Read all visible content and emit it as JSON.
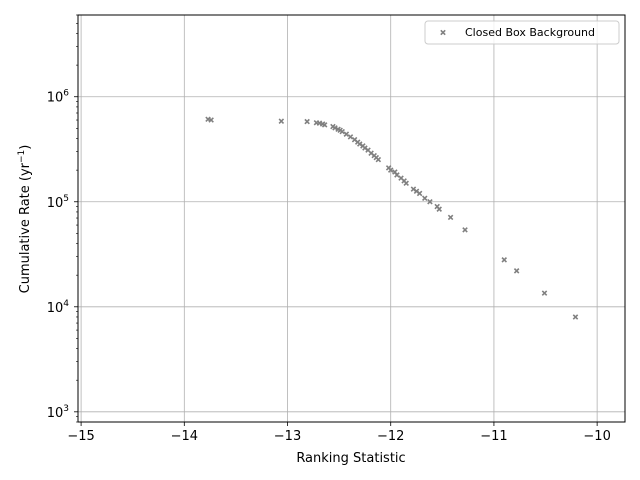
{
  "chart_data": {
    "type": "scatter",
    "title": "",
    "xlabel": "Ranking Statistic",
    "ylabel_prefix": "Cumulative Rate (yr",
    "ylabel_exp": "−1",
    "ylabel_suffix": ")",
    "yscale": "log",
    "xlim": [
      -15.03,
      -9.73
    ],
    "ylim": [
      800,
      6000000
    ],
    "grid": true,
    "legend_position": "top-right",
    "x_ticks": [
      {
        "value": -15,
        "label": "−15"
      },
      {
        "value": -14,
        "label": "−14"
      },
      {
        "value": -13,
        "label": "−13"
      },
      {
        "value": -12,
        "label": "−12"
      },
      {
        "value": -11,
        "label": "−11"
      },
      {
        "value": -10,
        "label": "−10"
      }
    ],
    "y_ticks": [
      {
        "value": 1000,
        "base": "10",
        "exp": "3"
      },
      {
        "value": 10000,
        "base": "10",
        "exp": "4"
      },
      {
        "value": 100000,
        "base": "10",
        "exp": "5"
      },
      {
        "value": 1000000,
        "base": "10",
        "exp": "6"
      }
    ],
    "series": [
      {
        "name": "Closed Box Background",
        "color": "#808080",
        "marker": "x",
        "points": [
          [
            -13.77,
            610000
          ],
          [
            -13.74,
            600000
          ],
          [
            -13.06,
            585000
          ],
          [
            -12.81,
            580000
          ],
          [
            -12.72,
            565000
          ],
          [
            -12.69,
            560000
          ],
          [
            -12.66,
            550000
          ],
          [
            -12.64,
            540000
          ],
          [
            -12.56,
            520000
          ],
          [
            -12.54,
            505000
          ],
          [
            -12.51,
            490000
          ],
          [
            -12.49,
            480000
          ],
          [
            -12.47,
            465000
          ],
          [
            -12.43,
            440000
          ],
          [
            -12.39,
            415000
          ],
          [
            -12.35,
            390000
          ],
          [
            -12.32,
            370000
          ],
          [
            -12.3,
            355000
          ],
          [
            -12.27,
            340000
          ],
          [
            -12.25,
            325000
          ],
          [
            -12.22,
            310000
          ],
          [
            -12.19,
            290000
          ],
          [
            -12.16,
            275000
          ],
          [
            -12.14,
            263000
          ],
          [
            -12.12,
            252000
          ],
          [
            -12.02,
            210000
          ],
          [
            -12.0,
            200000
          ],
          [
            -11.96,
            192000
          ],
          [
            -11.94,
            180000
          ],
          [
            -11.9,
            168000
          ],
          [
            -11.87,
            158000
          ],
          [
            -11.85,
            150000
          ],
          [
            -11.78,
            132000
          ],
          [
            -11.75,
            126000
          ],
          [
            -11.72,
            120000
          ],
          [
            -11.67,
            108000
          ],
          [
            -11.62,
            100000
          ],
          [
            -11.55,
            90000
          ],
          [
            -11.53,
            85000
          ],
          [
            -11.42,
            71000
          ],
          [
            -11.28,
            54000
          ],
          [
            -10.9,
            28000
          ],
          [
            -10.78,
            22000
          ],
          [
            -10.51,
            13500
          ],
          [
            -10.21,
            8000
          ]
        ]
      }
    ]
  }
}
